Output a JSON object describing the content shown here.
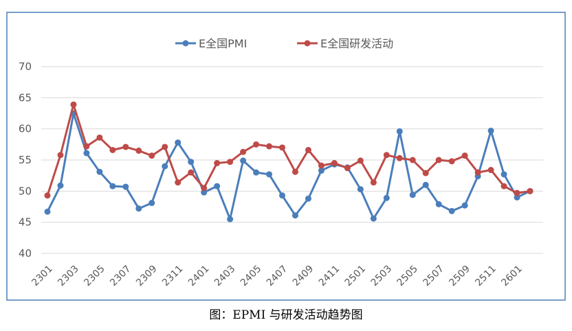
{
  "chart_data": {
    "type": "line",
    "caption": "图：EPMI 与研发活动趋势图",
    "categories": [
      "2301",
      null,
      "2303",
      null,
      "2305",
      null,
      "2307",
      null,
      "2309",
      null,
      "2311",
      null,
      "2401",
      null,
      "2403",
      null,
      "2405",
      null,
      "2407",
      null,
      "2409",
      null,
      "2411",
      null,
      "2501",
      null,
      "2503",
      null,
      "2505",
      null,
      "2507",
      null,
      "2509",
      null,
      "2511",
      null,
      "2601",
      null
    ],
    "series": [
      {
        "name": "E全国PMI",
        "color": "#4a7ebb",
        "values": [
          46.7,
          50.9,
          62.5,
          56.1,
          53.1,
          50.8,
          50.7,
          47.2,
          48.1,
          54.0,
          57.8,
          54.7,
          49.8,
          50.8,
          45.5,
          54.9,
          53.0,
          52.7,
          49.3,
          46.1,
          48.8,
          53.3,
          54.3,
          53.8,
          50.3,
          45.6,
          48.9,
          59.6,
          49.4,
          51.0,
          47.9,
          46.8,
          47.7,
          52.4,
          59.7,
          52.7,
          49.0,
          50.0
        ]
      },
      {
        "name": "E全国研发活动",
        "color": "#be4b48",
        "values": [
          49.3,
          55.8,
          63.9,
          57.2,
          58.6,
          56.6,
          57.1,
          56.5,
          55.7,
          57.1,
          51.4,
          53.0,
          50.5,
          54.5,
          54.7,
          56.3,
          57.5,
          57.2,
          57.0,
          53.1,
          56.6,
          54.1,
          54.5,
          53.7,
          54.9,
          51.4,
          55.8,
          55.3,
          55.0,
          52.9,
          55.0,
          54.8,
          55.7,
          53.0,
          53.4,
          50.8,
          49.7,
          50.0
        ]
      }
    ],
    "ylim": [
      40,
      70
    ],
    "yticks": [
      40,
      45,
      50,
      55,
      60,
      65,
      70
    ],
    "grid": true,
    "legend": "top"
  }
}
